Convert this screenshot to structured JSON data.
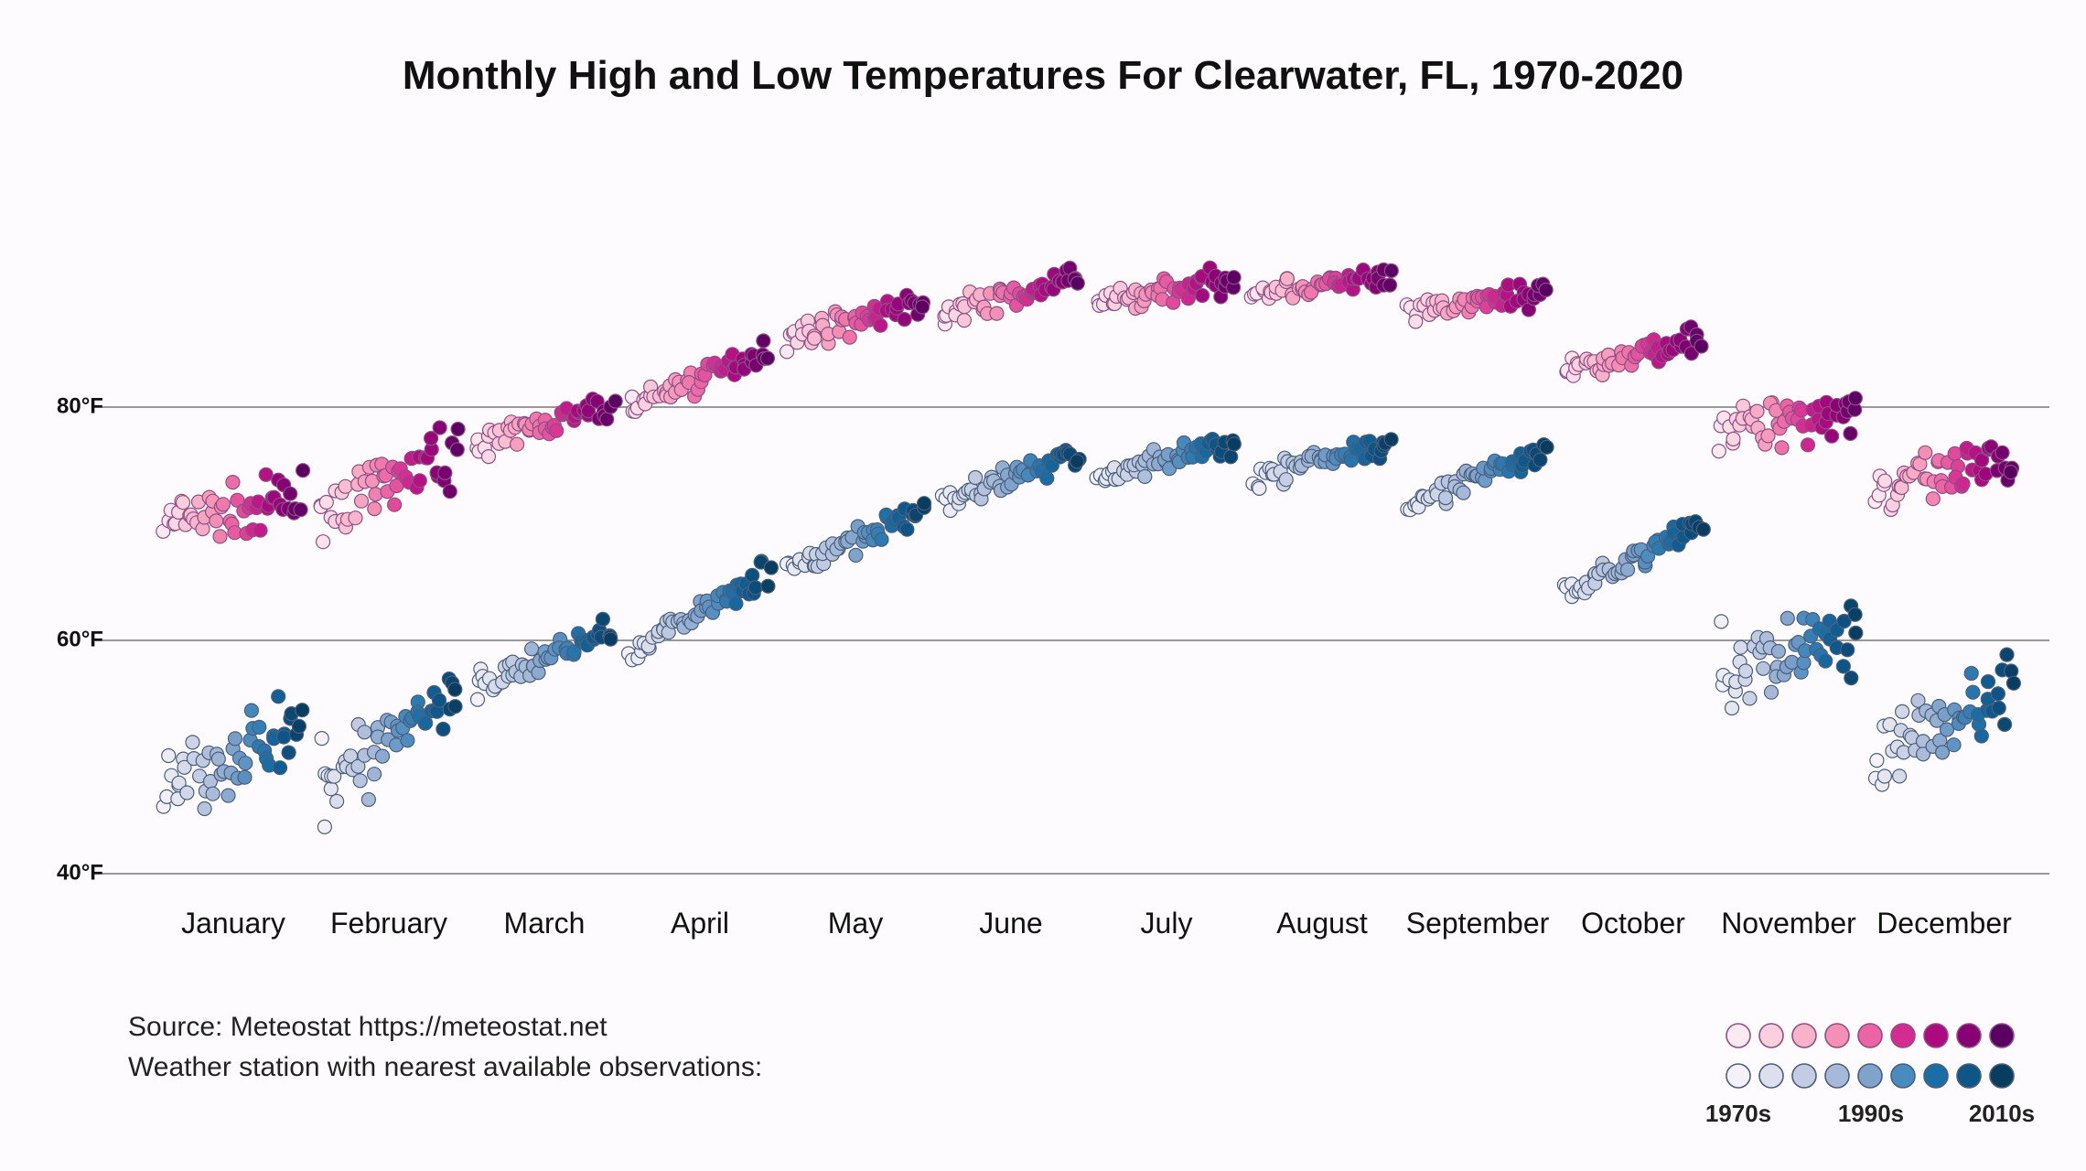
{
  "chart_data": {
    "type": "scatter",
    "title": "Monthly High and Low Temperatures For Clearwater, FL, 1970-2020",
    "ylim": [
      40,
      80
    ],
    "y_range_shown": [
      38,
      94
    ],
    "yticks": [
      {
        "value": 80,
        "label": "80°F"
      },
      {
        "value": 60,
        "label": "60°F"
      },
      {
        "value": 40,
        "label": "40°F"
      }
    ],
    "categories": [
      "January",
      "February",
      "March",
      "April",
      "May",
      "June",
      "July",
      "August",
      "September",
      "October",
      "November",
      "December"
    ],
    "years": [
      1970,
      2020
    ],
    "series": [
      {
        "name": "Monthly High",
        "start_2010s": [
          70,
          71,
          77,
          80,
          86,
          88,
          89,
          90,
          88,
          83,
          78,
          73
        ],
        "end_2010s": [
          72,
          76,
          80,
          85,
          89,
          91,
          91,
          91,
          90,
          86,
          80,
          75
        ],
        "palette": [
          "#fbeaf1",
          "#fad0de",
          "#f8b3c9",
          "#f490b5",
          "#ec64a3",
          "#d52b91",
          "#ad0a80",
          "#870175",
          "#5b0063"
        ]
      },
      {
        "name": "Monthly Low",
        "start_2010s": [
          48,
          47,
          56,
          59,
          66,
          72,
          74,
          74,
          72,
          64,
          57,
          50
        ],
        "end_2010s": [
          52,
          56,
          61,
          66,
          71,
          76,
          77,
          77,
          76,
          70,
          61,
          56
        ],
        "palette": [
          "#f4f2f8",
          "#dde0ec",
          "#c3cce2",
          "#a7b9d8",
          "#7fa3cb",
          "#4a8bbf",
          "#1a6ea6",
          "#0e5588",
          "#083d60"
        ]
      }
    ],
    "legend": {
      "labels": [
        "1970s",
        "1990s",
        "2010s"
      ],
      "high_colors": [
        "#fbeaf1",
        "#fad0de",
        "#f8b3c9",
        "#f490b5",
        "#ec64a3",
        "#d52b91",
        "#ad0a80",
        "#870175",
        "#5b0063"
      ],
      "low_colors": [
        "#f4f2f8",
        "#dde0ec",
        "#c3cce2",
        "#a7b9d8",
        "#7fa3cb",
        "#4a8bbf",
        "#1a6ea6",
        "#0e5588",
        "#083d60"
      ]
    },
    "source_lines": [
      "Source: Meteostat https://meteostat.net",
      "Weather station with nearest available observations:"
    ]
  }
}
